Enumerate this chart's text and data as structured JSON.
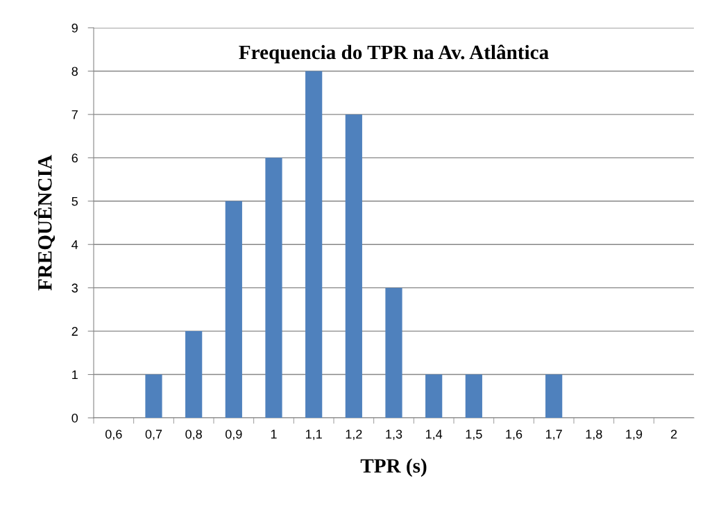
{
  "chart_data": {
    "type": "bar",
    "title": "Frequencia do TPR na Av. Atlântica",
    "xlabel": "TPR (s)",
    "ylabel": "FREQUÊNCIA",
    "categories": [
      "0,6",
      "0,7",
      "0,8",
      "0,9",
      "1",
      "1,1",
      "1,2",
      "1,3",
      "1,4",
      "1,5",
      "1,6",
      "1,7",
      "1,8",
      "1,9",
      "2"
    ],
    "values": [
      0,
      1,
      2,
      5,
      6,
      8,
      7,
      3,
      1,
      1,
      0,
      1,
      0,
      0,
      0
    ],
    "color": "#4f81bd",
    "ylim": [
      0,
      9
    ],
    "yticks": [
      0,
      1,
      2,
      3,
      4,
      5,
      6,
      7,
      8,
      9
    ],
    "grid": "y",
    "legend": false
  }
}
